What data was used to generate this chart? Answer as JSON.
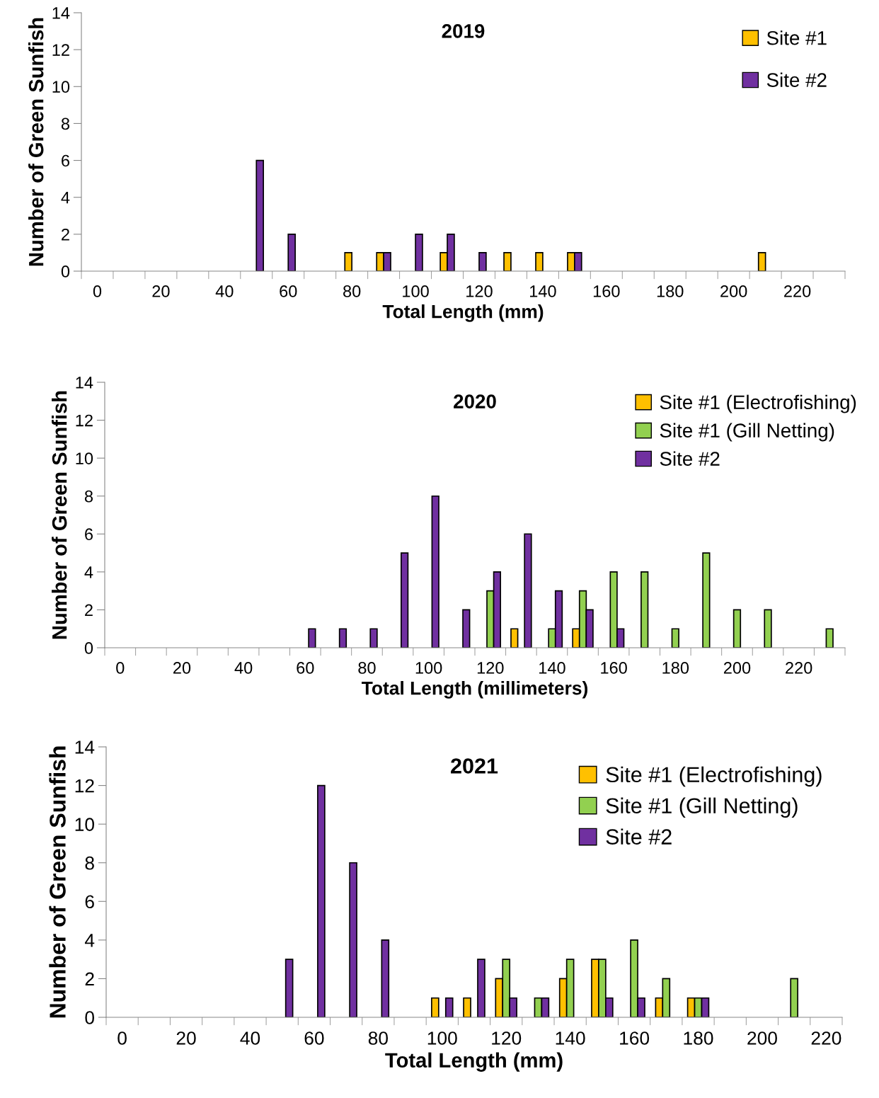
{
  "chart_data": [
    {
      "type": "bar",
      "title": "2019",
      "xlabel": "Total Length (mm)",
      "ylabel": "Number of Green Sunfish",
      "ylim": [
        0,
        14
      ],
      "yticks": [
        0,
        2,
        4,
        6,
        8,
        10,
        12,
        14
      ],
      "legend": "top right",
      "grid": false,
      "categories": [
        "0",
        null,
        "20",
        null,
        "40",
        null,
        "60",
        null,
        "80",
        null,
        "100",
        null,
        "120",
        null,
        "140",
        null,
        "160",
        null,
        "180",
        null,
        "200",
        null,
        "220",
        null
      ],
      "series": [
        {
          "name": "Site #1",
          "color": "#ffc000",
          "values": [
            0,
            0,
            0,
            0,
            0,
            0,
            0,
            0,
            1,
            1,
            0,
            1,
            0,
            1,
            1,
            1,
            0,
            0,
            0,
            0,
            0,
            1,
            0,
            0
          ]
        },
        {
          "name": "Site #2",
          "color": "#7030a0",
          "values": [
            0,
            0,
            0,
            0,
            0,
            6,
            2,
            0,
            0,
            1,
            2,
            2,
            1,
            0,
            0,
            1,
            0,
            0,
            0,
            0,
            0,
            0,
            0,
            0
          ]
        }
      ]
    },
    {
      "type": "bar",
      "title": "2020",
      "xlabel": "Total Length (millimeters)",
      "ylabel": "Number of Green Sunfish",
      "ylim": [
        0,
        14
      ],
      "yticks": [
        0,
        2,
        4,
        6,
        8,
        10,
        12,
        14
      ],
      "legend": "top right",
      "grid": false,
      "categories": [
        "0",
        null,
        "20",
        null,
        "40",
        null,
        "60",
        null,
        "80",
        null,
        "100",
        null,
        "120",
        null,
        "140",
        null,
        "160",
        null,
        "180",
        null,
        "200",
        null,
        "220",
        null
      ],
      "series": [
        {
          "name": "Site #1 (Electrofishing)",
          "color": "#ffc000",
          "values": [
            0,
            0,
            0,
            0,
            0,
            0,
            0,
            0,
            0,
            0,
            0,
            0,
            0,
            1,
            0,
            1,
            0,
            0,
            0,
            0,
            0,
            0,
            0,
            0
          ]
        },
        {
          "name": "Site #1 (Gill Netting)",
          "color": "#92d050",
          "values": [
            0,
            0,
            0,
            0,
            0,
            0,
            0,
            0,
            0,
            0,
            0,
            0,
            3,
            0,
            1,
            3,
            4,
            4,
            1,
            5,
            2,
            2,
            0,
            1
          ]
        },
        {
          "name": "Site #2",
          "color": "#7030a0",
          "values": [
            0,
            0,
            0,
            0,
            0,
            0,
            1,
            1,
            1,
            5,
            8,
            2,
            4,
            6,
            3,
            2,
            1,
            0,
            0,
            0,
            0,
            0,
            0,
            0
          ]
        }
      ]
    },
    {
      "type": "bar",
      "title": "2021",
      "xlabel": "Total Length (mm)",
      "ylabel": "Number of Green Sunfish",
      "ylim": [
        0,
        14
      ],
      "yticks": [
        0,
        2,
        4,
        6,
        8,
        10,
        12,
        14
      ],
      "legend": "top right",
      "grid": false,
      "categories": [
        "0",
        null,
        "20",
        null,
        "40",
        null,
        "60",
        null,
        "80",
        null,
        "100",
        null,
        "120",
        null,
        "140",
        null,
        "160",
        null,
        "180",
        null,
        "200",
        null,
        "220"
      ],
      "series": [
        {
          "name": "Site #1 (Electrofishing)",
          "color": "#ffc000",
          "values": [
            0,
            0,
            0,
            0,
            0,
            0,
            0,
            0,
            0,
            0,
            1,
            1,
            2,
            0,
            2,
            3,
            0,
            1,
            1,
            0,
            0,
            0,
            0
          ]
        },
        {
          "name": "Site #1 (Gill Netting)",
          "color": "#92d050",
          "values": [
            0,
            0,
            0,
            0,
            0,
            0,
            0,
            0,
            0,
            0,
            0,
            0,
            3,
            1,
            3,
            3,
            4,
            2,
            1,
            0,
            0,
            2,
            0
          ]
        },
        {
          "name": "Site #2",
          "color": "#7030a0",
          "values": [
            0,
            0,
            0,
            0,
            0,
            3,
            12,
            8,
            4,
            0,
            1,
            3,
            1,
            1,
            0,
            1,
            1,
            0,
            1,
            0,
            0,
            0,
            0
          ]
        }
      ]
    }
  ]
}
